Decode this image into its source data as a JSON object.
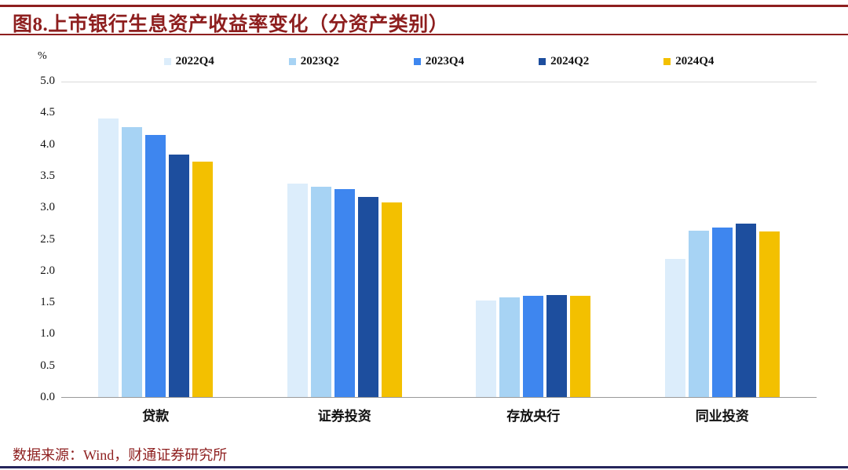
{
  "header": {
    "title": "图8.上市银行生息资产收益率变化（分资产类别）"
  },
  "footer": {
    "source": "数据来源：Wind，财通证券研究所"
  },
  "colors": {
    "accent_red": "#8e1f1f",
    "bottom_rule": "#26265c",
    "top_gridline": "#d9d9d9",
    "baseline": "#9a9a9a"
  },
  "chart_data": {
    "type": "bar",
    "title": "图8.上市银行生息资产收益率变化（分资产类别）",
    "unit_label": "%",
    "categories": [
      "贷款",
      "证券投资",
      "存放央行",
      "同业投资"
    ],
    "series": [
      {
        "name": "2022Q4",
        "color": "#dcedfb",
        "values": [
          4.41,
          3.37,
          1.53,
          2.18
        ]
      },
      {
        "name": "2023Q2",
        "color": "#a7d3f4",
        "values": [
          4.27,
          3.33,
          1.58,
          2.63
        ]
      },
      {
        "name": "2023Q4",
        "color": "#3e86ef",
        "values": [
          4.15,
          3.29,
          1.6,
          2.68
        ]
      },
      {
        "name": "2024Q2",
        "color": "#1d4e9e",
        "values": [
          3.83,
          3.16,
          1.61,
          2.74
        ]
      },
      {
        "name": "2024Q4",
        "color": "#f3c000",
        "values": [
          3.72,
          3.08,
          1.6,
          2.62
        ]
      }
    ],
    "ylim": [
      0,
      5
    ],
    "ytick_step": 0.5,
    "ytick_labels": [
      "0.0",
      "0.5",
      "1.0",
      "1.5",
      "2.0",
      "2.5",
      "3.0",
      "3.5",
      "4.0",
      "4.5",
      "5.0"
    ],
    "grid": false,
    "legend_position": "top"
  }
}
